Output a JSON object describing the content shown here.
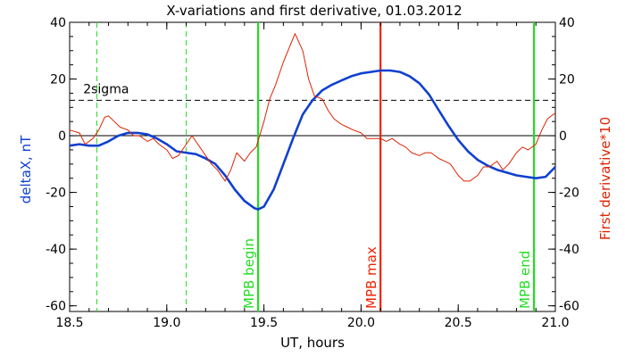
{
  "chart_data": {
    "type": "line",
    "title": "X-variations and first derivative, 01.03.2012",
    "xlabel": "UT, hours",
    "ylabel_left": "deltaX, nT",
    "ylabel_right": "First derivative*10",
    "xlim": [
      18.5,
      21.0
    ],
    "ylim": [
      -62,
      40
    ],
    "xticks": [
      18.5,
      19.0,
      19.5,
      20.0,
      20.5,
      21.0
    ],
    "xtick_labels": [
      "18.5",
      "19.0",
      "19.5",
      "20.0",
      "20.5",
      "21.0"
    ],
    "yticks": [
      40,
      20,
      0,
      -20,
      -40,
      -60
    ],
    "ytick_labels_left": [
      "40",
      "20",
      "0",
      "-20",
      "-40",
      "-60"
    ],
    "ytick_labels_right": [
      "40",
      "20",
      "0",
      "-20",
      "-40",
      "-60"
    ],
    "series": [
      {
        "axis": "left",
        "color": "#1040d0",
        "x": [
          18.5,
          18.55,
          18.6,
          18.65,
          18.7,
          18.75,
          18.8,
          18.85,
          18.9,
          18.95,
          19.0,
          19.05,
          19.1,
          19.15,
          19.2,
          19.25,
          19.3,
          19.35,
          19.4,
          19.45,
          19.47,
          19.5,
          19.55,
          19.6,
          19.65,
          19.7,
          19.75,
          19.8,
          19.85,
          19.9,
          19.95,
          20.0,
          20.05,
          20.1,
          20.15,
          20.2,
          20.25,
          20.3,
          20.35,
          20.4,
          20.45,
          20.5,
          20.55,
          20.6,
          20.65,
          20.7,
          20.75,
          20.8,
          20.85,
          20.9,
          20.95,
          21.0
        ],
        "values": [
          -3.5,
          -3,
          -3.5,
          -3.5,
          -2,
          0,
          1,
          1,
          0.5,
          -1,
          -3,
          -5.5,
          -6,
          -6.5,
          -8,
          -10,
          -14,
          -19,
          -23,
          -25.5,
          -26,
          -25,
          -19,
          -10,
          -1,
          7.5,
          12.5,
          16,
          18,
          19.5,
          21,
          22,
          22.5,
          23,
          23,
          22.5,
          21,
          18.5,
          14.5,
          9,
          3.5,
          -1.5,
          -5.5,
          -8.5,
          -10.5,
          -12,
          -13,
          -14,
          -14.5,
          -15,
          -14.5,
          -11
        ]
      },
      {
        "axis": "right",
        "color": "#dd2200",
        "x": [
          18.5,
          18.55,
          18.58,
          18.62,
          18.65,
          18.68,
          18.7,
          18.73,
          18.76,
          18.8,
          18.83,
          18.86,
          18.9,
          18.93,
          18.96,
          19.0,
          19.03,
          19.06,
          19.1,
          19.13,
          19.16,
          19.2,
          19.23,
          19.26,
          19.3,
          19.33,
          19.36,
          19.4,
          19.43,
          19.46,
          19.5,
          19.53,
          19.56,
          19.6,
          19.63,
          19.66,
          19.7,
          19.73,
          19.76,
          19.8,
          19.83,
          19.86,
          19.9,
          19.93,
          19.96,
          20.0,
          20.03,
          20.06,
          20.1,
          20.13,
          20.16,
          20.2,
          20.23,
          20.26,
          20.3,
          20.33,
          20.36,
          20.4,
          20.43,
          20.46,
          20.5,
          20.53,
          20.56,
          20.6,
          20.63,
          20.66,
          20.7,
          20.73,
          20.76,
          20.8,
          20.83,
          20.86,
          20.9,
          20.93,
          20.96,
          21.0
        ],
        "values": [
          2,
          1,
          -3,
          -1,
          2,
          6.5,
          7,
          5,
          3,
          2,
          0,
          0,
          -2,
          -1,
          -3,
          -5,
          -8,
          -7,
          -3,
          0,
          -3,
          -7,
          -10,
          -12,
          -16,
          -12,
          -6,
          -9,
          -6,
          -4,
          5,
          13,
          18,
          26,
          31,
          36,
          30,
          20,
          14,
          13,
          9,
          6,
          4,
          3,
          2,
          1,
          -1,
          -1,
          -1,
          -2,
          -1,
          -3,
          -4,
          -6,
          -7,
          -6,
          -6,
          -8,
          -9,
          -10,
          -14,
          -16,
          -16,
          -14,
          -11,
          -11,
          -9,
          -12,
          -10,
          -6,
          -4,
          -5,
          -3,
          2,
          6,
          8
        ]
      }
    ],
    "hlines": [
      {
        "y": 0,
        "style": "solid",
        "color": "#000000"
      },
      {
        "y": 12.5,
        "style": "dashed",
        "color": "#000000",
        "label": "2sigma",
        "label_x": 18.57
      }
    ],
    "vlines": [
      {
        "x": 18.64,
        "style": "dashed",
        "color": "#22dd22",
        "label": ""
      },
      {
        "x": 19.1,
        "style": "dashed",
        "color": "#22dd22",
        "label": ""
      },
      {
        "x": 19.47,
        "style": "solid",
        "color": "#22dd22",
        "label": "MPB begin"
      },
      {
        "x": 20.1,
        "style": "solid",
        "color": "#ee2200",
        "label": "MPB max"
      },
      {
        "x": 20.89,
        "style": "solid",
        "color": "#22dd22",
        "label": "MPB end"
      }
    ]
  },
  "colors": {
    "left_axis_label": "#1040d0",
    "right_axis_label": "#dd2200"
  }
}
